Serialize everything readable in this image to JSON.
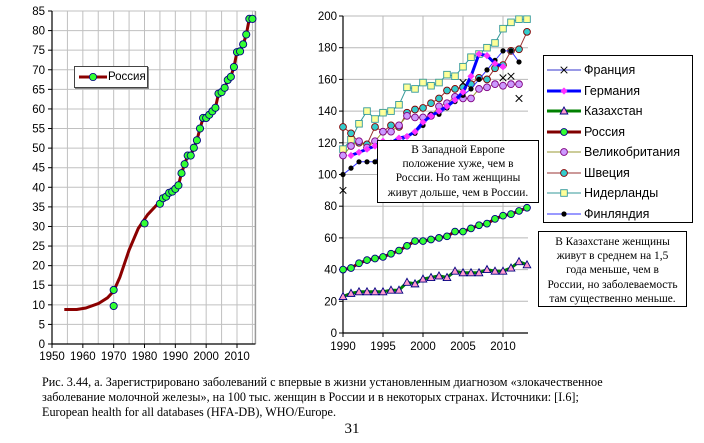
{
  "chart_data": [
    {
      "type": "line",
      "title": "",
      "xlabel": "",
      "ylabel": "",
      "xlim": [
        1950,
        2015
      ],
      "ylim": [
        0,
        85
      ],
      "x_ticks": [
        "1950",
        "1960",
        "1970",
        "1980",
        "1990",
        "2000",
        "2010"
      ],
      "y_ticks": [
        "0",
        "5",
        "10",
        "15",
        "20",
        "25",
        "30",
        "35",
        "40",
        "45",
        "50",
        "55",
        "60",
        "65",
        "70",
        "75",
        "80",
        "85"
      ],
      "grid": true,
      "legend_position": "upper-left",
      "series": [
        {
          "name": "Россия",
          "color": "#8B0000",
          "marker_color": "#33FF33",
          "trend": {
            "x": [
              1954,
              1958,
              1961,
              1965,
              1968,
              1970,
              1972,
              1975,
              1978,
              1981,
              1984,
              1986
            ],
            "y": [
              8.8,
              8.8,
              9.2,
              10.3,
              11.8,
              13.5,
              17,
              24,
              29.5,
              33,
              35.5,
              36.5
            ]
          },
          "points": {
            "x": [
              1970,
              1970,
              1980,
              1985,
              1986,
              1987,
              1988,
              1989,
              1990,
              1991,
              1992,
              1993,
              1994,
              1995,
              1996,
              1997,
              1998,
              1999,
              2000,
              2001,
              2002,
              2003,
              2004,
              2005,
              2006,
              2007,
              2008,
              2009,
              2010,
              2011,
              2012,
              2013,
              2014,
              2015
            ],
            "y": [
              13.8,
              9.7,
              30.8,
              35.8,
              37.2,
              37.6,
              38.6,
              38.9,
              39.6,
              40.5,
              43.6,
              45.9,
              48.1,
              48.1,
              50.1,
              52,
              55,
              57.7,
              57.7,
              58.5,
              59.4,
              60.3,
              63.9,
              64.3,
              65.4,
              67.4,
              68.2,
              70.7,
              74.5,
              74.7,
              76.5,
              79,
              83,
              83
            ]
          }
        }
      ]
    },
    {
      "type": "line",
      "title": "",
      "xlabel": "",
      "ylabel": "",
      "xlim": [
        1990,
        2013
      ],
      "ylim": [
        0,
        200
      ],
      "x_ticks": [
        "1990",
        "1995",
        "2000",
        "2005",
        "2010"
      ],
      "y_ticks": [
        "0",
        "20",
        "40",
        "60",
        "80",
        "100",
        "120",
        "140",
        "160",
        "180",
        "200"
      ],
      "grid": true,
      "legend_position": "right",
      "series": [
        {
          "name": "Франция",
          "color": "#3333CC",
          "marker": "x",
          "marker_color": "#000000",
          "x": [
            1990,
            2005,
            2010,
            2011,
            2012
          ],
          "y": [
            90,
            158,
            161,
            162,
            148
          ]
        },
        {
          "name": "Германия",
          "color": "#0000FF",
          "marker": "diamond",
          "marker_color": "#FF33FF",
          "x": [
            1991,
            1992,
            1993,
            1994,
            1995,
            1996,
            1997,
            1998,
            1999,
            2000,
            2001,
            2002,
            2003,
            2004,
            2005,
            2006,
            2007,
            2008,
            2009,
            2010
          ],
          "y": [
            112,
            114,
            116,
            118,
            121,
            120,
            123,
            124,
            127,
            133,
            137,
            140,
            143,
            147,
            152,
            162,
            176,
            175,
            170,
            168
          ]
        },
        {
          "name": "Казахстан",
          "color": "#008000",
          "marker": "triangle",
          "marker_color": "#FF99CC",
          "x": [
            1990,
            1991,
            1992,
            1993,
            1994,
            1995,
            1996,
            1997,
            1998,
            1999,
            2000,
            2001,
            2002,
            2003,
            2004,
            2005,
            2006,
            2007,
            2008,
            2009,
            2010,
            2011,
            2012,
            2013
          ],
          "y": [
            23,
            25,
            26,
            26,
            26,
            26,
            27,
            27,
            32,
            31,
            34,
            35,
            36,
            35,
            39,
            38,
            38,
            38,
            40,
            39,
            39,
            41,
            45,
            43
          ]
        },
        {
          "name": "Россия",
          "color": "#800000",
          "marker": "circle",
          "marker_color": "#33FF33",
          "x": [
            1990,
            1991,
            1992,
            1993,
            1994,
            1995,
            1996,
            1997,
            1998,
            1999,
            2000,
            2001,
            2002,
            2003,
            2004,
            2005,
            2006,
            2007,
            2008,
            2009,
            2010,
            2011,
            2012,
            2013
          ],
          "y": [
            40,
            41,
            44,
            46,
            47,
            48,
            50,
            52,
            55,
            58,
            58,
            59,
            60,
            61,
            64,
            64,
            66,
            68,
            69,
            72,
            74,
            75,
            77,
            79
          ]
        },
        {
          "name": "Великобритания",
          "color": "#999933",
          "marker": "circle",
          "marker_color": "#CC99FF",
          "x": [
            1990,
            1991,
            1992,
            1993,
            1994,
            1995,
            1996,
            1997,
            1998,
            1999,
            2000,
            2001,
            2002,
            2003,
            2004,
            2005,
            2006,
            2007,
            2008,
            2009,
            2010,
            2011,
            2012
          ],
          "y": [
            112,
            118,
            121,
            117,
            121,
            127,
            127,
            131,
            137,
            136,
            136,
            137,
            143,
            145,
            149,
            148,
            148,
            154,
            155,
            157,
            156,
            157,
            157
          ]
        },
        {
          "name": "Швеция",
          "color": "#993333",
          "marker": "circle",
          "marker_color": "#33CCCC",
          "x": [
            1990,
            1991,
            1992,
            1993,
            1994,
            1995,
            1996,
            1997,
            1998,
            1999,
            2000,
            2001,
            2002,
            2003,
            2004,
            2005,
            2006,
            2007,
            2008,
            2009,
            2010,
            2011,
            2012,
            2013
          ],
          "y": [
            130,
            126,
            120,
            119,
            130,
            127,
            131,
            130,
            139,
            141,
            142,
            145,
            148,
            153,
            154,
            155,
            157,
            161,
            160,
            167,
            169,
            178,
            179,
            190
          ]
        },
        {
          "name": "Нидерланды",
          "color": "#339999",
          "marker": "square",
          "marker_color": "#FFFF99",
          "x": [
            1990,
            1991,
            1992,
            1993,
            1994,
            1995,
            1996,
            1997,
            1998,
            1999,
            2000,
            2001,
            2002,
            2003,
            2004,
            2005,
            2006,
            2007,
            2008,
            2009,
            2010,
            2011,
            2012,
            2013
          ],
          "y": [
            116,
            122,
            132,
            140,
            135,
            139,
            140,
            144,
            155,
            154,
            158,
            156,
            158,
            163,
            162,
            168,
            174,
            176,
            180,
            183,
            192,
            196,
            198,
            198
          ]
        },
        {
          "name": "Финляндия",
          "color": "#3333FF",
          "marker": "dot",
          "marker_color": "#000000",
          "x": [
            1990,
            1991,
            1992,
            1993,
            1994,
            1995,
            1996,
            1997,
            1998,
            1999,
            2000,
            2001,
            2002,
            2003,
            2004,
            2005,
            2006,
            2007,
            2008,
            2009,
            2010,
            2011,
            2012
          ],
          "y": [
            100,
            104,
            108,
            108,
            108,
            115,
            118,
            120,
            124,
            126,
            131,
            138,
            138,
            142,
            146,
            150,
            154,
            160,
            166,
            172,
            178,
            178,
            171
          ]
        }
      ],
      "annotations": [
        "В Западной Европе положение хуже, чем в России. Но там женщины живут дольше, чем в России.",
        "В Казахстане женщины живут в среднем на 1,5 года меньше, чем в России, но заболеваемость там существенно меньше."
      ]
    }
  ],
  "notes": {
    "west_europe": [
      "В Западной Европе",
      "положение хуже, чем в",
      "России. Но там женщины",
      "живут дольше, чем в России."
    ],
    "kazakhstan": [
      "В Казахстане женщины",
      "живут в среднем на 1,5",
      "года меньше, чем в",
      "России, но заболеваемость",
      "там существенно меньше."
    ]
  },
  "caption": {
    "lines": [
      "Рис. 3.44, а. Зарегистрировано заболеваний с впервые в жизни установленным диагнозом «злокачественное",
      "заболевание молочной железы», на 100 тыс. женщин в России и в некоторых странах. Источники: [I.6];",
      "European health for all databases (HFA-DB), WHO/Europe."
    ]
  },
  "page_number": "31"
}
